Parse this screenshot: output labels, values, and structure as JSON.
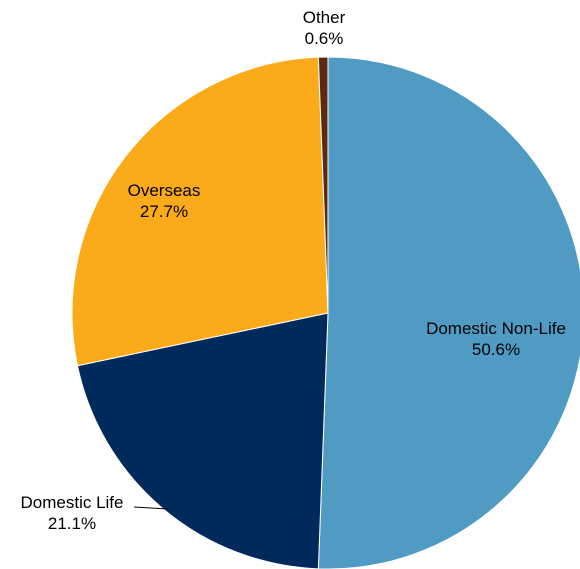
{
  "chart_data": {
    "type": "pie",
    "title": "",
    "slices": [
      {
        "label": "Domestic Non-Life",
        "value": 50.6,
        "value_label": "50.6%",
        "color": "#4f9bc3"
      },
      {
        "label": "Domestic Life",
        "value": 21.1,
        "value_label": "21.1%",
        "color": "#002a5c"
      },
      {
        "label": "Overseas",
        "value": 27.7,
        "value_label": "27.7%",
        "color": "#fbaa1a"
      },
      {
        "label": "Other",
        "value": 0.6,
        "value_label": "0.6%",
        "color": "#5c2a12"
      }
    ],
    "start_angle": "12 o'clock",
    "direction": "clockwise",
    "legend": "none"
  }
}
